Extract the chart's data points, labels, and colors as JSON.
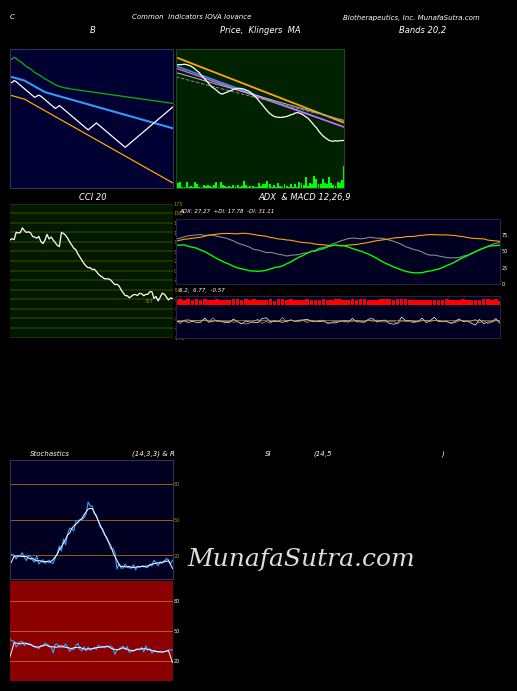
{
  "bg_color": "#000000",
  "panel1_bg": "#000033",
  "panel2_bg": "#002200",
  "panel3_bg": "#001a00",
  "panel4_bg": "#000022",
  "panel5_bg": "#000022",
  "panel6_bg": "#8b0000",
  "n_points": 80,
  "subtitle_row1": [
    "B",
    "Price,  Klingers  MA",
    "Bands 20,2"
  ],
  "subtitle_row2": [
    "CCI 20",
    "ADX  & MACD 12,26,9"
  ],
  "subtitle_row3_left": "Stochastics",
  "subtitle_row3_mid1": "(14,3,3) & R",
  "subtitle_row3_mid2": "SI",
  "subtitle_row3_mid3": "(14,5",
  "subtitle_row3_right": ")",
  "panel4_label": "ADX: 27.27  +DI: 17.78  -DI: 31.11",
  "panel5_label": "6.2,  6.77,  -0.57",
  "watermark": "MunafaSutra.com",
  "cci_yticks": [
    175,
    150,
    125,
    100,
    75,
    50,
    25,
    0,
    -25,
    -50,
    -75,
    -100,
    -125,
    -150,
    -175
  ],
  "gold_color": "#cc8800",
  "adx_yticks_labels": [
    "75",
    "50",
    "25",
    "0"
  ],
  "stoch_yticks_labels": [
    "80",
    "50",
    "20"
  ],
  "rsi_yticks_labels": [
    "80",
    "50",
    "20"
  ]
}
